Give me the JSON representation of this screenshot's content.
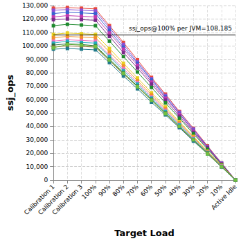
{
  "chart_data": {
    "type": "line",
    "x_label": "Target Load",
    "y_label": "ssj_ops",
    "categories": [
      "Calibration 1",
      "Calibration 2",
      "Calibration 3",
      "100%",
      "90%",
      "80%",
      "70%",
      "60%",
      "50%",
      "40%",
      "30%",
      "20%",
      "10%",
      "Active Idle"
    ],
    "ylim": [
      0,
      130000
    ],
    "yticks": [
      0,
      {
        "value": 10000,
        "label": "10,000"
      },
      {
        "value": 20000,
        "label": "20,000"
      },
      {
        "value": 30000,
        "label": "30,000"
      },
      {
        "value": 40000,
        "label": "40,000"
      },
      {
        "value": 50000,
        "label": "50,000"
      },
      {
        "value": 60000,
        "label": "60,000"
      },
      {
        "value": 70000,
        "label": "70,000"
      },
      {
        "value": 80000,
        "label": "80,000"
      },
      {
        "value": 90000,
        "label": "90,000"
      },
      {
        "value": 100000,
        "label": "100,000"
      },
      {
        "value": 110000,
        "label": "110,000"
      },
      {
        "value": 120000,
        "label": "120,000"
      },
      {
        "value": 130000,
        "label": "130,000"
      }
    ],
    "grid": true,
    "marker": "square",
    "reference_line": {
      "value": 108185,
      "label": "ssj_ops@100% per JVM=108,185"
    },
    "series": [
      {
        "color": "#e8483c",
        "values": [
          128000,
          128500,
          128000,
          127500,
          115000,
          102500,
          89500,
          76500,
          64000,
          51000,
          38500,
          25500,
          12800,
          0
        ]
      },
      {
        "color": "#8a4fd6",
        "values": [
          126500,
          127000,
          126500,
          126000,
          113500,
          101000,
          88000,
          75500,
          63000,
          50500,
          38000,
          25000,
          12600,
          0
        ]
      },
      {
        "color": "#3a5fd0",
        "values": [
          124000,
          125000,
          124500,
          124000,
          111500,
          99000,
          87000,
          74500,
          62000,
          49500,
          37000,
          25000,
          12400,
          0
        ]
      },
      {
        "color": "#c03ab0",
        "values": [
          121500,
          122500,
          122000,
          121500,
          109500,
          97500,
          85500,
          73000,
          61000,
          49000,
          36500,
          24500,
          12200,
          0
        ]
      },
      {
        "color": "#7a2a8a",
        "values": [
          119500,
          120000,
          119500,
          119000,
          107000,
          95000,
          83500,
          71500,
          59500,
          47500,
          35500,
          24000,
          11900,
          0
        ]
      },
      {
        "color": "#1e8a2e",
        "values": [
          115000,
          116000,
          115500,
          115000,
          103500,
          92000,
          80500,
          69000,
          57500,
          46000,
          34500,
          23000,
          11500,
          0
        ]
      },
      {
        "color": "#e8d020",
        "values": [
          108500,
          109500,
          109000,
          108500,
          98000,
          87000,
          76000,
          65000,
          54500,
          43500,
          32500,
          21500,
          10900,
          0
        ]
      },
      {
        "color": "#f0902a",
        "values": [
          106000,
          107000,
          106500,
          106000,
          95500,
          85000,
          74000,
          63500,
          53000,
          42500,
          32000,
          21000,
          10600,
          0
        ]
      },
      {
        "color": "#f070c0",
        "values": [
          103500,
          104500,
          104000,
          103500,
          93000,
          83000,
          72500,
          62000,
          52000,
          41500,
          31000,
          20500,
          10400,
          0
        ]
      },
      {
        "color": "#20b0c0",
        "values": [
          102000,
          103500,
          102500,
          102000,
          92000,
          81500,
          71500,
          61000,
          51000,
          41000,
          30500,
          20500,
          10200,
          0
        ]
      },
      {
        "color": "#2a6a3a",
        "values": [
          100500,
          101500,
          101000,
          100000,
          90000,
          80000,
          70000,
          60000,
          50000,
          40000,
          30000,
          20000,
          10000,
          0
        ]
      },
      {
        "color": "#9a6a3a",
        "values": [
          99000,
          100000,
          99500,
          99000,
          89000,
          79000,
          69500,
          59500,
          49500,
          39500,
          29500,
          20000,
          9900,
          0
        ]
      },
      {
        "color": "#207a8a",
        "values": [
          97500,
          98000,
          97500,
          97000,
          87500,
          77500,
          68000,
          58000,
          48500,
          39000,
          29000,
          19500,
          9700,
          0
        ]
      },
      {
        "color": "#70c040",
        "values": [
          98500,
          101000,
          100500,
          99500,
          89500,
          79500,
          69500,
          59500,
          49500,
          40000,
          30000,
          19500,
          9900,
          0
        ]
      }
    ]
  }
}
